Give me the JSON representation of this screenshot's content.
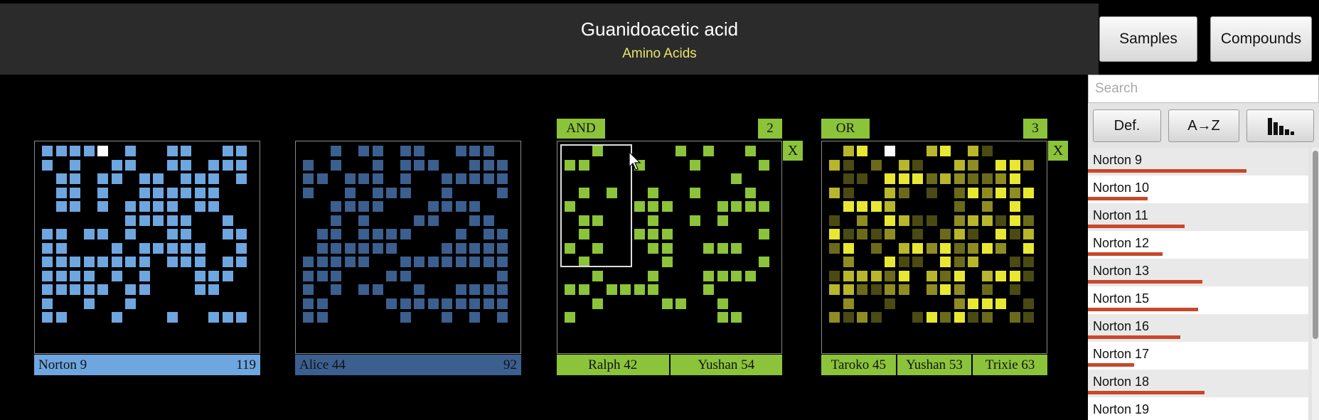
{
  "header": {
    "title": "Guanidoacetic acid",
    "subtitle": "Amino Acids",
    "samples_label": "Samples",
    "compounds_label": "Compounds"
  },
  "search": {
    "placeholder": "Search",
    "value": ""
  },
  "sort": {
    "default_label": "Def.",
    "az_label": "A→Z",
    "chart_icon": "bar-chart-icon"
  },
  "sample_list": [
    {
      "name": "Norton 9",
      "level": 0.72
    },
    {
      "name": "Norton 10",
      "level": 0.27
    },
    {
      "name": "Norton 11",
      "level": 0.44
    },
    {
      "name": "Norton 12",
      "level": 0.34
    },
    {
      "name": "Norton 13",
      "level": 0.52
    },
    {
      "name": "Norton 15",
      "level": 0.5
    },
    {
      "name": "Norton 16",
      "level": 0.42
    },
    {
      "name": "Norton 17",
      "level": 0.21
    },
    {
      "name": "Norton 18",
      "level": 0.53
    },
    {
      "name": "Norton 19",
      "level": 0.0
    }
  ],
  "panels": [
    {
      "kind": "single",
      "color": "#6ea6e0",
      "highlight": "#ffffff",
      "footer_bg": "#6ea6e0",
      "name": "Norton 9",
      "count": "119"
    },
    {
      "kind": "single",
      "color": "#3b5f8f",
      "highlight": "#3b5f8f",
      "footer_bg": "#3b5f8f",
      "name": "Alice 44",
      "count": "92"
    },
    {
      "kind": "and",
      "color": "#8bc33a",
      "op": "AND",
      "count": "2",
      "members": [
        "Ralph 42",
        "Yushan 54"
      ],
      "close": "X"
    },
    {
      "kind": "or",
      "color": "#e8e832",
      "op": "OR",
      "count": "3",
      "members": [
        "Taroko 45",
        "Yushan 53",
        "Trixie 63"
      ],
      "close": "X"
    }
  ],
  "colors": {
    "accent_green": "#8bc33a",
    "bar_red": "#c9472a",
    "subtitle_yellow": "#e8e46a"
  }
}
